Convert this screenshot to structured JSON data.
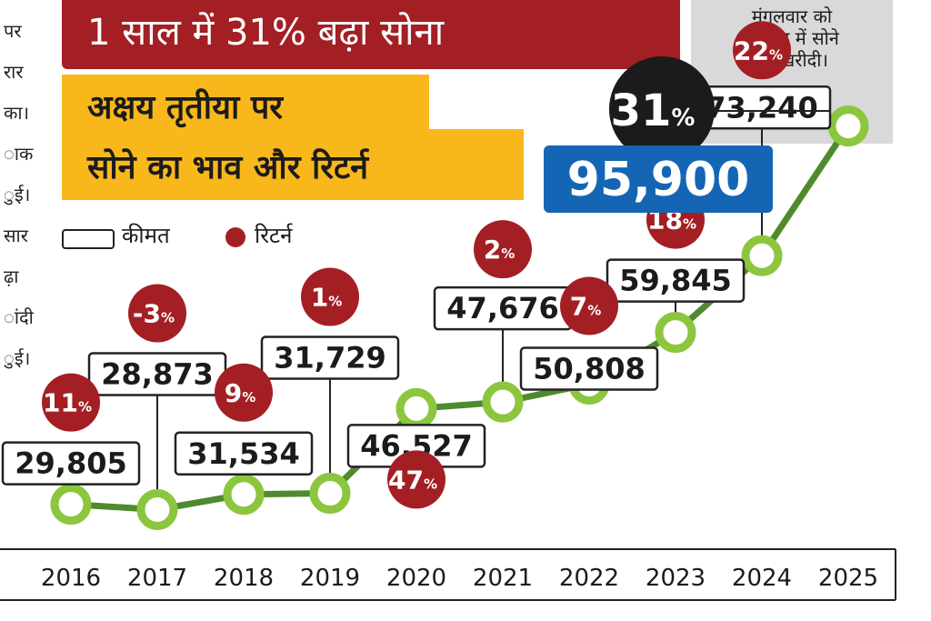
{
  "left_column_fragments": [
    "पर",
    "रार",
    "का।",
    "ाक",
    "ुई।",
    "सार",
    "ढ़ा",
    "ांदी",
    "ुई।"
  ],
  "headline": "1 साल में 31% बढ़ा सोना",
  "subtitle": {
    "line1": "अक्षय तृतीया पर",
    "line2": "सोने का भाव और रिटर्न"
  },
  "note": {
    "line1": "मंगलवार को",
    "line2": "भोपाल में सोने",
    "line3": "की खरीदी।"
  },
  "legend": {
    "price": "कीमत",
    "return": "रिटर्न"
  },
  "highlight": {
    "return": "31",
    "return_unit": "%",
    "price": "95,900"
  },
  "colors": {
    "headline_bg": "#a31f24",
    "subtitle_bg": "#f8b81c",
    "note_bg": "#d9d9d9",
    "line": "#4f8a2e",
    "marker": "#8cc63f",
    "return_badge": "#a31f24",
    "highlight_return_bg": "#1b1b1b",
    "highlight_price_bg": "#1565b5"
  },
  "chart_data": {
    "type": "line",
    "title": "",
    "xlabel": "",
    "ylabel": "",
    "x": [
      "2016",
      "2017",
      "2018",
      "2019",
      "2020",
      "2021",
      "2022",
      "2023",
      "2024",
      "2025"
    ],
    "series": [
      {
        "name": "कीमत",
        "values": [
          29805,
          28873,
          31534,
          31729,
          46527,
          47676,
          50808,
          59845,
          73240,
          95900
        ],
        "labels": [
          "29,805",
          "28,873",
          "31,534",
          "31,729",
          "46,527",
          "47,676",
          "50,808",
          "59,845",
          "73,240",
          "95,900"
        ]
      },
      {
        "name": "रिटर्न",
        "values": [
          11,
          -3,
          9,
          1,
          47,
          2,
          7,
          18,
          22,
          31
        ],
        "labels": [
          "11",
          "-3",
          "9",
          "1",
          "47",
          "2",
          "7",
          "18",
          "22",
          "31"
        ],
        "unit": "%"
      }
    ],
    "ylim": [
      28000,
      96000
    ],
    "grid": false,
    "legend_position": "top-left"
  }
}
